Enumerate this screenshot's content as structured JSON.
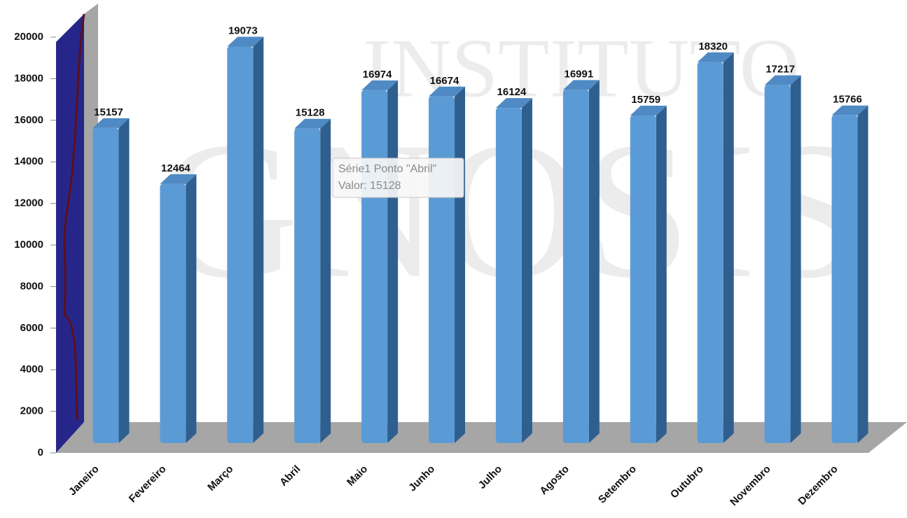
{
  "chart_data": {
    "type": "bar",
    "watermark": [
      "INSTITUTO",
      "GNOSIS"
    ],
    "categories": [
      "Janeiro",
      "Fevereiro",
      "Março",
      "Abril",
      "Maio",
      "Junho",
      "Julho",
      "Agosto",
      "Setembro",
      "Outubro",
      "Novembro",
      "Dezembro"
    ],
    "values": [
      15157,
      12464,
      19073,
      15128,
      16974,
      16674,
      16124,
      16991,
      15759,
      18320,
      17217,
      15766
    ],
    "color": "#5b9bd5",
    "ylim": [
      0,
      20000
    ],
    "yticks": [
      0,
      2000,
      4000,
      6000,
      8000,
      10000,
      12000,
      14000,
      16000,
      18000,
      20000
    ],
    "tooltip": [
      "Série1 Ponto \"Abril\"",
      "Valor: 15128"
    ]
  }
}
